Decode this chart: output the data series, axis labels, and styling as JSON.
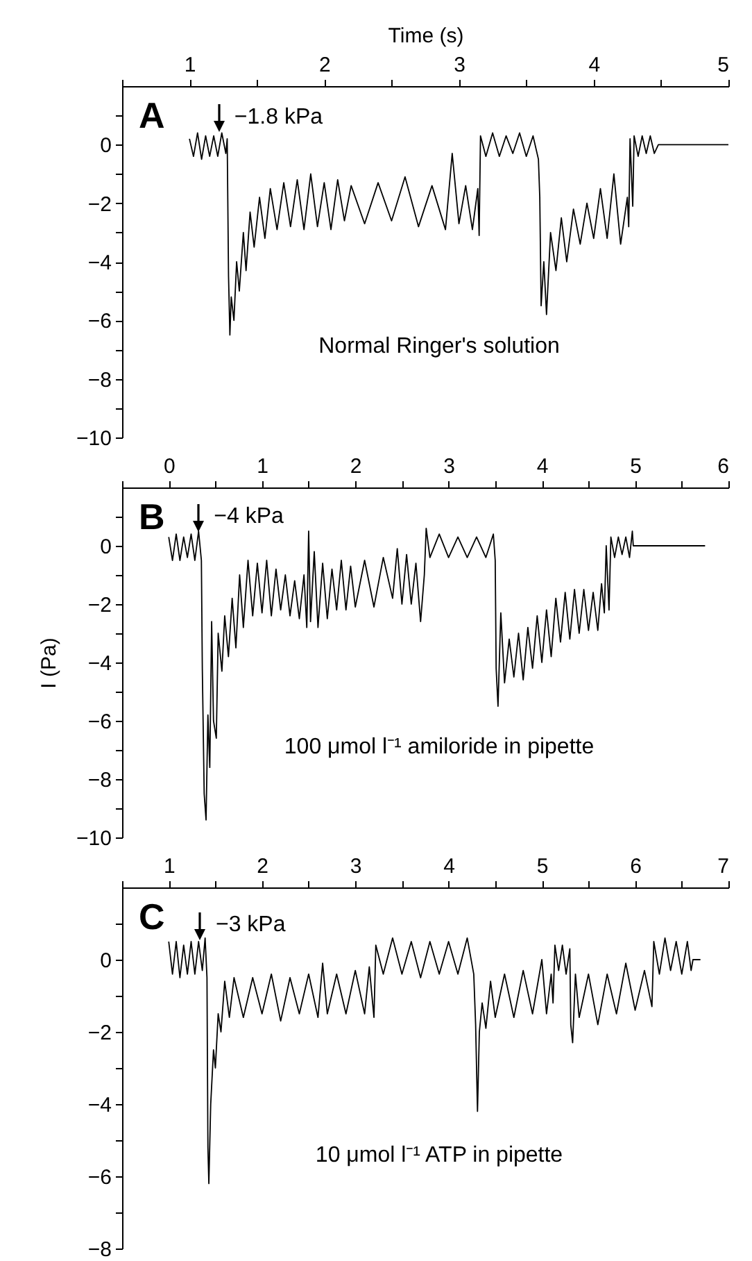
{
  "chart_data": [
    {
      "type": "line",
      "xlabel": "Time (s)",
      "color": "#000000",
      "xlim": [
        0.5,
        5
      ],
      "ylim": [
        -10,
        2
      ],
      "xticks": [
        {
          "value": 0.5,
          "label": null
        },
        1,
        {
          "value": 1.5,
          "label": null
        },
        2,
        {
          "value": 2.5,
          "label": null
        },
        3,
        {
          "value": 3.5,
          "label": null
        },
        4,
        {
          "value": 4.5,
          "label": null
        },
        5
      ],
      "yticks": [
        -10,
        {
          "value": -9,
          "label": null
        },
        -8,
        {
          "value": -7,
          "label": null
        },
        -6,
        {
          "value": -5,
          "label": null
        },
        -4,
        {
          "value": -3,
          "label": null
        },
        -2,
        {
          "value": -1,
          "label": null
        },
        0,
        {
          "value": 1,
          "label": null
        }
      ],
      "annotations": [
        "A",
        {
          "text": "−1.8 kPa",
          "x": 1.22,
          "y": 0.43
        },
        "Normal Ringer's solution"
      ],
      "x": [
        1.0,
        1.03,
        1.06,
        1.09,
        1.12,
        1.15,
        1.18,
        1.21,
        1.24,
        1.27,
        1.28,
        1.29,
        1.3,
        1.31,
        1.33,
        1.35,
        1.37,
        1.4,
        1.42,
        1.45,
        1.48,
        1.52,
        1.56,
        1.6,
        1.65,
        1.7,
        1.75,
        1.8,
        1.85,
        1.9,
        1.95,
        2.0,
        2.05,
        2.1,
        2.15,
        2.2,
        2.3,
        2.4,
        2.5,
        2.6,
        2.7,
        2.8,
        2.9,
        2.95,
        3.0,
        3.05,
        3.1,
        3.14,
        3.15,
        3.16,
        3.2,
        3.25,
        3.3,
        3.35,
        3.4,
        3.45,
        3.5,
        3.55,
        3.59,
        3.6,
        3.61,
        3.63,
        3.65,
        3.68,
        3.72,
        3.76,
        3.8,
        3.85,
        3.9,
        3.95,
        4.0,
        4.05,
        4.1,
        4.15,
        4.2,
        4.25,
        4.26,
        4.27,
        4.29,
        4.3,
        4.33,
        4.36,
        4.39,
        4.42,
        4.45,
        4.48,
        5.0
      ],
      "values": [
        0.2,
        -0.4,
        0.4,
        -0.5,
        0.3,
        -0.4,
        0.3,
        -0.4,
        0.4,
        -0.3,
        0.2,
        -4.5,
        -6.5,
        -5.2,
        -6.0,
        -4.0,
        -5.0,
        -3.0,
        -4.3,
        -2.3,
        -3.5,
        -1.8,
        -3.2,
        -1.5,
        -2.9,
        -1.3,
        -2.8,
        -1.2,
        -2.9,
        -1.0,
        -2.8,
        -1.3,
        -2.9,
        -1.2,
        -2.6,
        -1.4,
        -2.7,
        -1.3,
        -2.6,
        -1.1,
        -2.8,
        -1.4,
        -2.9,
        -0.3,
        -2.7,
        -1.4,
        -2.9,
        -1.5,
        -3.1,
        0.3,
        -0.4,
        0.4,
        -0.4,
        0.3,
        -0.3,
        0.4,
        -0.4,
        0.3,
        -0.5,
        -1.8,
        -5.5,
        -4.0,
        -5.8,
        -3.0,
        -4.3,
        -2.5,
        -4.0,
        -2.2,
        -3.4,
        -2.0,
        -3.2,
        -1.5,
        -3.2,
        -1.0,
        -3.4,
        -1.8,
        -2.8,
        0.2,
        -2.1,
        0.3,
        -0.4,
        0.3,
        -0.3,
        0.3,
        -0.3,
        0.0,
        0.0
      ]
    },
    {
      "type": "line",
      "ylabel": "I (Pa)",
      "color": "#000000",
      "xlim": [
        -0.5,
        6
      ],
      "ylim": [
        -10,
        2
      ],
      "xticks": [
        {
          "value": -0.5,
          "label": null
        },
        0,
        {
          "value": 0.5,
          "label": null
        },
        1,
        {
          "value": 1.5,
          "label": null
        },
        2,
        {
          "value": 2.5,
          "label": null
        },
        3,
        {
          "value": 3.5,
          "label": null
        },
        4,
        {
          "value": 4.5,
          "label": null
        },
        5,
        {
          "value": 5.5,
          "label": null
        },
        6
      ],
      "yticks": [
        -10,
        {
          "value": -9,
          "label": null
        },
        -8,
        {
          "value": -7,
          "label": null
        },
        -6,
        {
          "value": -5,
          "label": null
        },
        -4,
        {
          "value": -3,
          "label": null
        },
        -2,
        {
          "value": -1,
          "label": null
        },
        0,
        {
          "value": 1,
          "label": null
        }
      ],
      "annotations": [
        "B",
        {
          "text": "−4 kPa",
          "x": 0.32,
          "y": 0.5
        },
        "100 μmol l⁻¹ amiloride in pipette"
      ],
      "x": [
        0,
        0.04,
        0.08,
        0.12,
        0.16,
        0.2,
        0.24,
        0.28,
        0.32,
        0.35,
        0.36,
        0.38,
        0.4,
        0.42,
        0.44,
        0.46,
        0.48,
        0.51,
        0.53,
        0.57,
        0.6,
        0.64,
        0.68,
        0.72,
        0.76,
        0.8,
        0.85,
        0.9,
        0.95,
        1.0,
        1.05,
        1.1,
        1.15,
        1.2,
        1.25,
        1.3,
        1.35,
        1.4,
        1.45,
        1.48,
        1.5,
        1.52,
        1.56,
        1.6,
        1.65,
        1.7,
        1.75,
        1.8,
        1.85,
        1.9,
        1.95,
        2.0,
        2.1,
        2.2,
        2.3,
        2.4,
        2.45,
        2.5,
        2.55,
        2.6,
        2.65,
        2.7,
        2.74,
        2.76,
        2.8,
        2.9,
        3.0,
        3.1,
        3.2,
        3.3,
        3.4,
        3.48,
        3.5,
        3.51,
        3.53,
        3.56,
        3.6,
        3.65,
        3.7,
        3.75,
        3.8,
        3.85,
        3.9,
        3.95,
        4.0,
        4.05,
        4.1,
        4.15,
        4.2,
        4.25,
        4.3,
        4.35,
        4.4,
        4.45,
        4.5,
        4.55,
        4.6,
        4.64,
        4.67,
        4.69,
        4.72,
        4.74,
        4.78,
        4.82,
        4.86,
        4.9,
        4.94,
        4.97,
        4.98,
        5.75
      ],
      "values": [
        0.3,
        -0.5,
        0.4,
        -0.5,
        0.3,
        -0.4,
        0.4,
        -0.5,
        0.5,
        -0.5,
        -4.2,
        -8.5,
        -9.4,
        -5.8,
        -7.6,
        -2.6,
        -6.0,
        -6.6,
        -3.0,
        -4.3,
        -2.4,
        -3.8,
        -1.8,
        -3.5,
        -1.0,
        -2.8,
        -0.5,
        -2.4,
        -0.6,
        -2.3,
        -0.5,
        -2.4,
        -0.8,
        -2.2,
        -1.0,
        -2.4,
        -1.2,
        -2.5,
        -1.0,
        -2.8,
        0.5,
        -2.6,
        -0.2,
        -2.8,
        -0.6,
        -2.5,
        -0.8,
        -2.2,
        -0.5,
        -2.2,
        -0.7,
        -2.1,
        -0.5,
        -2.1,
        -0.4,
        -1.8,
        -0.1,
        -2.0,
        -0.3,
        -2.0,
        -0.6,
        -2.6,
        -1.0,
        0.6,
        -0.4,
        0.4,
        -0.4,
        0.3,
        -0.4,
        0.3,
        -0.4,
        0.4,
        -0.5,
        -4.2,
        -5.5,
        -2.3,
        -4.7,
        -3.2,
        -4.5,
        -3.0,
        -4.6,
        -2.8,
        -4.2,
        -2.4,
        -4.0,
        -2.2,
        -3.8,
        -1.8,
        -3.3,
        -1.6,
        -3.2,
        -1.5,
        -3.0,
        -1.5,
        -2.9,
        -1.6,
        -2.9,
        -1.3,
        -2.3,
        0.0,
        -2.2,
        0.3,
        -0.4,
        0.3,
        -0.3,
        0.3,
        -0.4,
        0.5,
        0.0,
        0.0
      ]
    },
    {
      "type": "line",
      "color": "#000000",
      "xlim": [
        0.5,
        7
      ],
      "ylim": [
        -8,
        2
      ],
      "xticks": [
        {
          "value": 0.5,
          "label": null
        },
        1,
        {
          "value": 1.5,
          "label": null
        },
        2,
        {
          "value": 2.5,
          "label": null
        },
        3,
        {
          "value": 3.5,
          "label": null
        },
        4,
        {
          "value": 4.5,
          "label": null
        },
        5,
        {
          "value": 5.5,
          "label": null
        },
        6,
        {
          "value": 6.5,
          "label": null
        },
        7
      ],
      "yticks": [
        -8,
        {
          "value": -7,
          "label": null
        },
        -6,
        {
          "value": -5,
          "label": null
        },
        -4,
        {
          "value": -3,
          "label": null
        },
        -2,
        {
          "value": -1,
          "label": null
        },
        0,
        {
          "value": 1,
          "label": null
        }
      ],
      "annotations": [
        "C",
        {
          "text": "−3 kPa",
          "x": 1.34,
          "y": 0.55
        },
        "10 μmol l⁻¹ ATP in pipette"
      ],
      "x": [
        1.0,
        1.04,
        1.08,
        1.12,
        1.16,
        1.2,
        1.24,
        1.28,
        1.32,
        1.36,
        1.39,
        1.41,
        1.42,
        1.43,
        1.45,
        1.48,
        1.5,
        1.53,
        1.56,
        1.6,
        1.65,
        1.7,
        1.8,
        1.9,
        2.0,
        2.1,
        2.2,
        2.3,
        2.4,
        2.5,
        2.6,
        2.65,
        2.7,
        2.8,
        2.9,
        3.0,
        3.1,
        3.15,
        3.2,
        3.22,
        3.3,
        3.4,
        3.5,
        3.6,
        3.7,
        3.8,
        3.9,
        4.0,
        4.1,
        4.2,
        4.27,
        4.29,
        4.31,
        4.33,
        4.36,
        4.4,
        4.45,
        4.5,
        4.6,
        4.7,
        4.8,
        4.9,
        5.0,
        5.05,
        5.1,
        5.12,
        5.14,
        5.18,
        5.22,
        5.26,
        5.3,
        5.31,
        5.33,
        5.36,
        5.4,
        5.5,
        5.6,
        5.7,
        5.8,
        5.9,
        6.0,
        6.1,
        6.18,
        6.2,
        6.26,
        6.32,
        6.38,
        6.44,
        6.5,
        6.56,
        6.6,
        6.62,
        6.7
      ],
      "values": [
        0.5,
        -0.4,
        0.5,
        -0.5,
        0.4,
        -0.4,
        0.5,
        -0.4,
        0.5,
        -0.3,
        0.6,
        -0.5,
        -5.2,
        -6.2,
        -4.0,
        -2.5,
        -3.0,
        -1.5,
        -2.0,
        -0.6,
        -1.6,
        -0.5,
        -1.6,
        -0.5,
        -1.5,
        -0.4,
        -1.7,
        -0.5,
        -1.5,
        -0.4,
        -1.6,
        -0.1,
        -1.5,
        -0.4,
        -1.5,
        -0.3,
        -1.5,
        -0.2,
        -1.6,
        0.4,
        -0.4,
        0.6,
        -0.4,
        0.5,
        -0.5,
        0.5,
        -0.4,
        0.5,
        -0.4,
        0.6,
        -0.4,
        -1.8,
        -4.2,
        -2.0,
        -1.2,
        -1.9,
        -0.6,
        -1.6,
        -0.4,
        -1.6,
        -0.3,
        -1.5,
        0.0,
        -1.5,
        -0.4,
        -1.2,
        0.4,
        -0.3,
        0.4,
        -0.4,
        0.3,
        -1.8,
        -2.3,
        -0.4,
        -1.6,
        -0.4,
        -1.8,
        -0.4,
        -1.5,
        -0.1,
        -1.4,
        -0.3,
        -1.3,
        0.5,
        -0.4,
        0.6,
        -0.3,
        0.5,
        -0.4,
        0.5,
        -0.3,
        0.0,
        0.0
      ]
    }
  ]
}
